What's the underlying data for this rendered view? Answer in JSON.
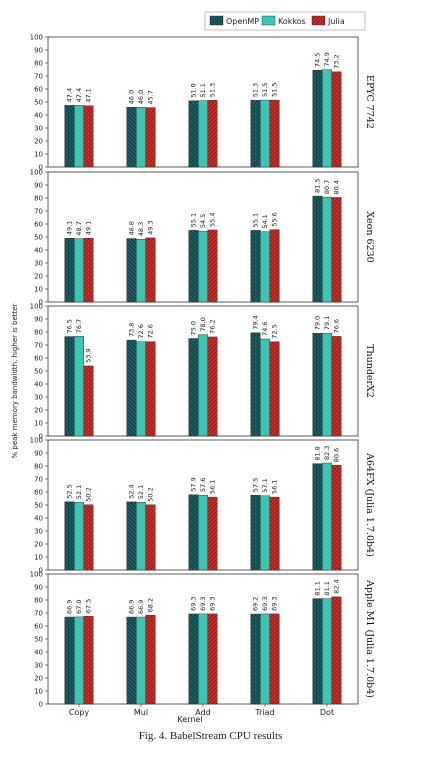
{
  "chart_data": {
    "type": "bar",
    "ylabel": "% peak memory bandwidth, higher is better",
    "xlabel": "Kernel",
    "categories": [
      "Copy",
      "Mul",
      "Add",
      "Triad",
      "Dot"
    ],
    "ylim": [
      0,
      100
    ],
    "yticks": [
      0,
      10,
      20,
      30,
      40,
      50,
      60,
      70,
      80,
      90,
      100
    ],
    "legend_position": "top-right",
    "series_meta": [
      {
        "name": "OpenMP",
        "color": "#1d5c63",
        "hatch": "backslash"
      },
      {
        "name": "Kokkos",
        "color": "#3fc4b4",
        "hatch": "none"
      },
      {
        "name": "Julia",
        "color": "#c0302b",
        "hatch": "slash"
      }
    ],
    "panels": [
      {
        "title": "EPYC 7742",
        "series": [
          {
            "name": "OpenMP",
            "values": [
              47.4,
              46.0,
              51.0,
              51.3,
              74.5
            ],
            "labels": [
              "47.4",
              "46.0",
              "51.0",
              "51.3",
              "74.5"
            ]
          },
          {
            "name": "Kokkos",
            "values": [
              47.4,
              46.0,
              51.1,
              51.5,
              74.9
            ],
            "labels": [
              "47.4",
              "46.0",
              "51.1",
              "51.5",
              "74.9"
            ]
          },
          {
            "name": "Julia",
            "values": [
              47.1,
              45.7,
              51.3,
              51.5,
              73.2
            ],
            "labels": [
              "47.1",
              "45.7",
              "51.3",
              "51.5",
              "73.2"
            ]
          }
        ]
      },
      {
        "title": "Xeon 6230",
        "series": [
          {
            "name": "OpenMP",
            "values": [
              49.1,
              48.8,
              55.1,
              55.1,
              81.5
            ],
            "labels": [
              "49.1",
              "48.8",
              "55.1",
              "55.1",
              "81.5"
            ]
          },
          {
            "name": "Kokkos",
            "values": [
              48.7,
              48.3,
              54.5,
              54.1,
              80.7
            ],
            "labels": [
              "48.7",
              "48.3",
              "54.5",
              "54.1",
              "80.7"
            ]
          },
          {
            "name": "Julia",
            "values": [
              49.1,
              49.3,
              55.4,
              55.6,
              80.4
            ],
            "labels": [
              "49.1",
              "49.3",
              "55.4",
              "55.6",
              "80.4"
            ]
          }
        ]
      },
      {
        "title": "ThunderX2",
        "series": [
          {
            "name": "OpenMP",
            "values": [
              76.5,
              73.8,
              75.0,
              79.4,
              79.0
            ],
            "labels": [
              "76.5",
              "73.8",
              "75.0",
              "79.4",
              "79.0"
            ]
          },
          {
            "name": "Kokkos",
            "values": [
              76.7,
              72.6,
              78.0,
              74.6,
              79.1
            ],
            "labels": [
              "76.7",
              "72.6",
              "78.0",
              "74.6",
              "79.1"
            ]
          },
          {
            "name": "Julia",
            "values": [
              53.9,
              72.6,
              76.2,
              72.5,
              76.6
            ],
            "labels": [
              "53.9",
              "72.6",
              "76.2",
              "72.5",
              "76.6"
            ]
          }
        ]
      },
      {
        "title": "A64FX (Julia 1.7.0b4)",
        "series": [
          {
            "name": "OpenMP",
            "values": [
              52.5,
              52.4,
              57.9,
              57.5,
              81.8
            ],
            "labels": [
              "52.5",
              "52.4",
              "57.9",
              "57.5",
              "81.8"
            ]
          },
          {
            "name": "Kokkos",
            "values": [
              52.1,
              52.1,
              57.6,
              57.1,
              82.3
            ],
            "labels": [
              "52.1",
              "52.1",
              "57.6",
              "57.1",
              "82.3"
            ]
          },
          {
            "name": "Julia",
            "values": [
              50.2,
              50.2,
              56.1,
              56.1,
              80.6
            ],
            "labels": [
              "50.2",
              "50.2",
              "56.1",
              "56.1",
              "80.6"
            ]
          }
        ]
      },
      {
        "title": "Apple M1 (Julia 1.7.0b4)",
        "series": [
          {
            "name": "OpenMP",
            "values": [
              66.9,
              66.9,
              69.3,
              69.2,
              81.1
            ],
            "labels": [
              "66.9",
              "66.9",
              "69.3",
              "69.2",
              "81.1"
            ]
          },
          {
            "name": "Kokkos",
            "values": [
              67.0,
              66.9,
              69.3,
              69.3,
              81.1
            ],
            "labels": [
              "67.0",
              "66.9",
              "69.3",
              "69.3",
              "81.1"
            ]
          },
          {
            "name": "Julia",
            "values": [
              67.5,
              68.2,
              69.3,
              69.3,
              82.4
            ],
            "labels": [
              "67.5",
              "68.2",
              "69.3",
              "69.3",
              "82.4"
            ]
          }
        ]
      }
    ]
  },
  "caption": "Fig. 4.  BabelStream CPU results"
}
